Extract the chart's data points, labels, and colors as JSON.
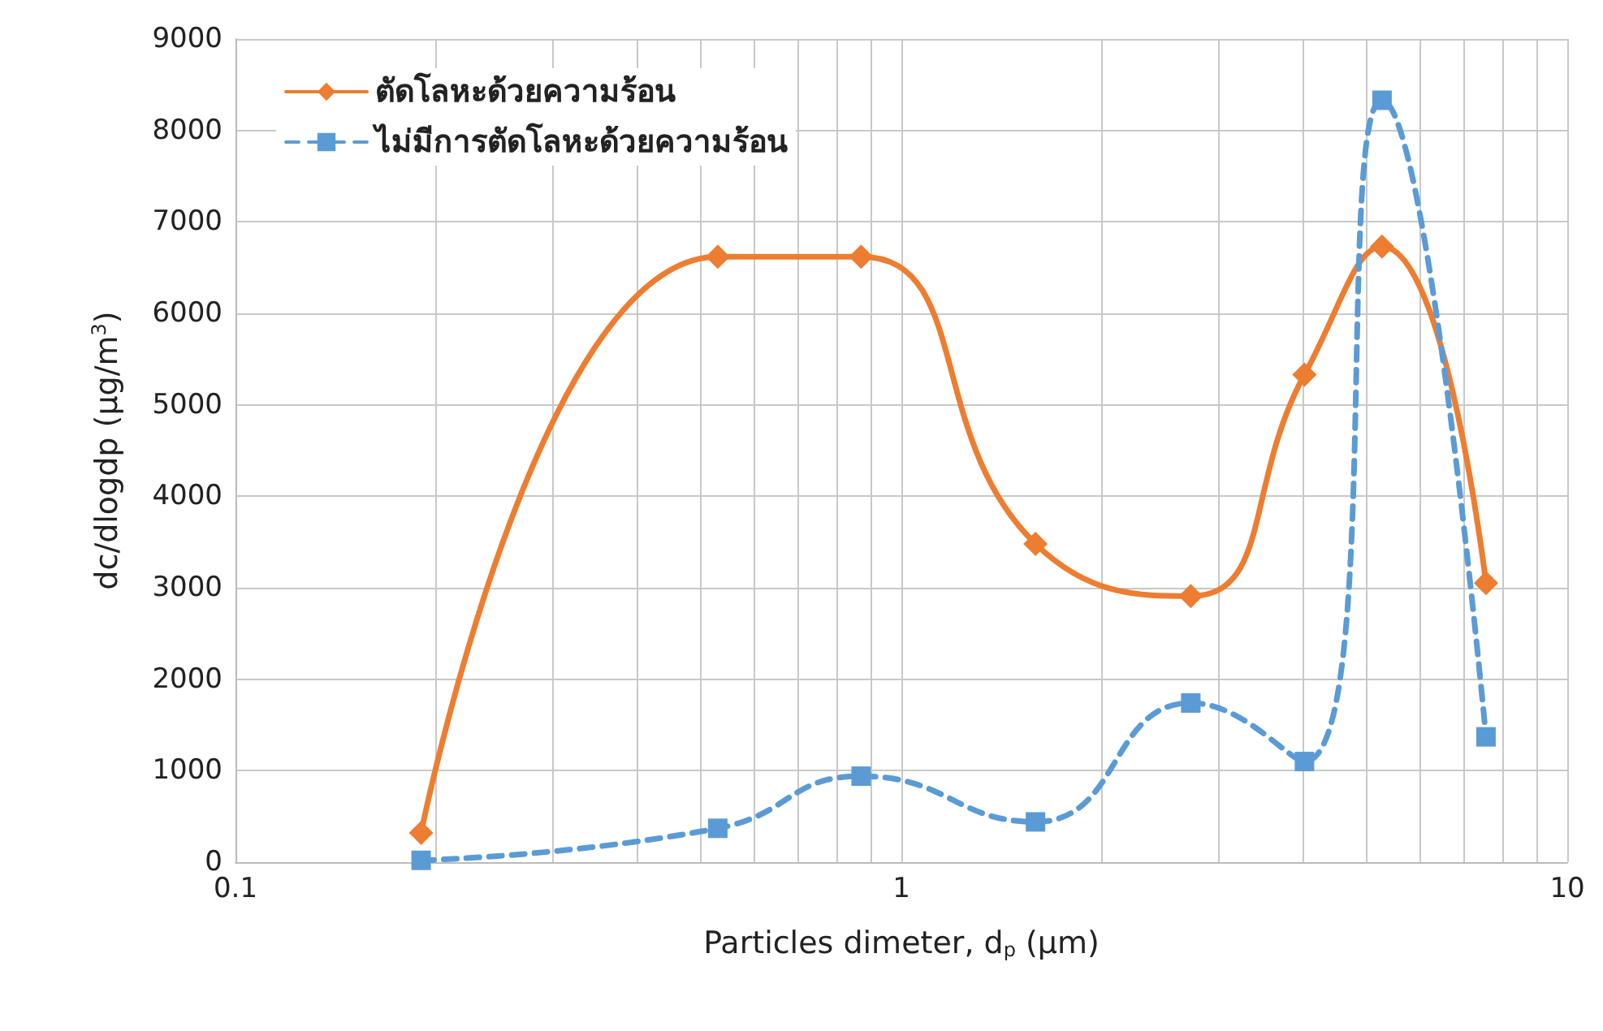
{
  "chart_data": {
    "type": "line",
    "xlabel": "Particles dimeter, d$_{p}$ (µm)",
    "ylabel": "dc/dlogdp (µg/m$^{3}$)",
    "log": "x",
    "xlim": [
      0.1,
      10
    ],
    "xticks": [
      0.1,
      1,
      10
    ],
    "ylim": [
      0,
      9000
    ],
    "yticks": [
      0,
      1000,
      2000,
      3000,
      4000,
      5000,
      6000,
      7000,
      8000,
      9000
    ],
    "grid": true,
    "legend": "top left",
    "series": [
      {
        "name": "ตัดโลหะด้วยความร้อน",
        "color": "#ed7d31",
        "marker": "diamond",
        "line_style": "solid",
        "x": [
          0.19,
          0.53,
          0.87,
          1.59,
          2.72,
          4.03,
          5.27,
          7.55
        ],
        "values": [
          320,
          6620,
          6620,
          3480,
          2910,
          5330,
          6730,
          3050
        ]
      },
      {
        "name": "ไม่มีการตัดโลหะด้วยความร้อน",
        "color": "#5b9bd5",
        "marker": "square",
        "line_style": "dashed",
        "x": [
          0.19,
          0.53,
          0.87,
          1.59,
          2.72,
          4.03,
          5.27,
          7.55
        ],
        "values": [
          20,
          370,
          940,
          440,
          1740,
          1100,
          8330,
          1370
        ]
      }
    ]
  }
}
